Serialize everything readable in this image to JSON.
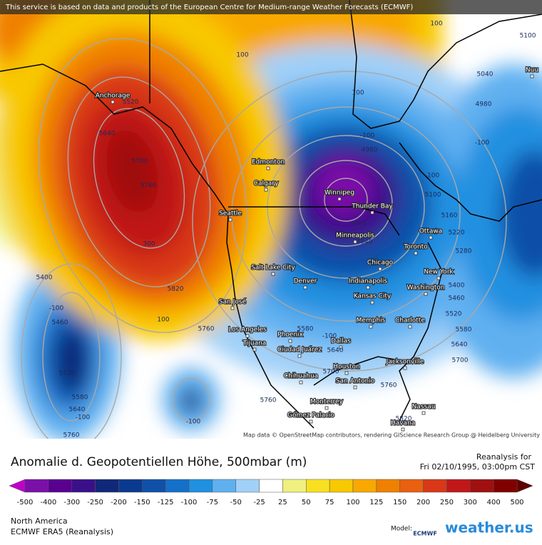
{
  "header": {
    "notice": "This service is based on data and products of the European Centre for Medium-range Weather Forecasts (ECMWF)"
  },
  "map": {
    "cities": [
      "Anchorage",
      "Edmonton",
      "Calgary",
      "Winnipeg",
      "Thunder Bay",
      "Seattle",
      "Minneapolis",
      "Ottawa",
      "Toronto",
      "Chicago",
      "Salt Lake City",
      "Denver",
      "Indianapolis",
      "New York",
      "Kansas City",
      "Washington",
      "San José",
      "Memphis",
      "Charlotte",
      "Los Angeles",
      "Phoenix",
      "Dallas",
      "Tijuana",
      "Ciudad Juárez",
      "Chihuahua",
      "Houston",
      "Jacksonville",
      "San Antonio",
      "Monterrey",
      "Gómez Palacio",
      "Nassau",
      "Havana",
      "Nuu"
    ],
    "contour_labels": [
      100,
      100,
      100,
      5100,
      5040,
      4980,
      -100,
      -100,
      5100,
      5160,
      5220,
      5280,
      5400,
      5460,
      5520,
      5580,
      5640,
      5700,
      -100,
      4980,
      4920,
      5040,
      5520,
      5640,
      5700,
      5760,
      300,
      5820,
      100,
      5760,
      5400,
      -100,
      5460,
      5520,
      5580,
      5640,
      -100,
      5760,
      -100,
      5580,
      -100,
      5640,
      5700,
      5760,
      5760,
      5820
    ],
    "attribution": "Map data © OpenStreetMap contributors, rendering GIScience Research Group @ Heidelberg University"
  },
  "legend": {
    "title": "Anomalie d. Geopotentiellen Höhe, 500mbar (m)",
    "ticks": [
      -500,
      -400,
      -300,
      -250,
      -200,
      -150,
      -125,
      -100,
      -75,
      -50,
      -25,
      25,
      50,
      75,
      100,
      125,
      150,
      200,
      250,
      300,
      400,
      500
    ],
    "colors": [
      "#7a10a8",
      "#5a0090",
      "#3a108a",
      "#102878",
      "#0a3a8f",
      "#1050a8",
      "#1470c8",
      "#2090e0",
      "#60b0f0",
      "#a0d0f8",
      "#ffffff",
      "#f0f080",
      "#f8e020",
      "#f8c800",
      "#f8a800",
      "#f08000",
      "#e86010",
      "#d83818",
      "#c01818",
      "#a01010",
      "#800000"
    ],
    "end_colors": [
      "#c000c8",
      "#600000"
    ]
  },
  "info": {
    "reanalysis_for": "Reanalysis for",
    "datetime": "Fri 02/10/1995, 03:00pm CST",
    "region": "North America",
    "model_name": "ECMWF ERA5 (Reanalysis)",
    "model_label": "Model:",
    "model_logo": "ECMWF",
    "brand": "weather.us"
  }
}
